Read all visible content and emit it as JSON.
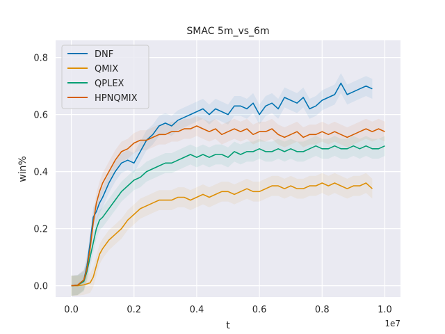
{
  "chart_data": {
    "type": "line",
    "title": "SMAC 5m_vs_6m",
    "xlabel": "t",
    "ylabel": "win%",
    "x_offset_label": "1e7",
    "xlim": [
      -0.05,
      1.05
    ],
    "ylim": [
      -0.04,
      0.86
    ],
    "x_ticks": [
      0.0,
      0.2,
      0.4,
      0.6,
      0.8,
      1.0
    ],
    "x_tick_labels": [
      "0.0",
      "0.2",
      "0.4",
      "0.6",
      "0.8",
      "1.0"
    ],
    "y_ticks": [
      0.0,
      0.2,
      0.4,
      0.6,
      0.8
    ],
    "y_tick_labels": [
      "0.0",
      "0.2",
      "0.4",
      "0.6",
      "0.8"
    ],
    "grid": true,
    "legend_position": "upper-left",
    "background": "#eaeaf2",
    "series": [
      {
        "name": "DNF",
        "color": "#0173b2",
        "x": [
          0.0,
          0.02,
          0.04,
          0.05,
          0.06,
          0.07,
          0.08,
          0.09,
          0.1,
          0.12,
          0.14,
          0.16,
          0.18,
          0.2,
          0.22,
          0.24,
          0.26,
          0.28,
          0.3,
          0.32,
          0.34,
          0.36,
          0.38,
          0.4,
          0.42,
          0.44,
          0.46,
          0.48,
          0.5,
          0.52,
          0.54,
          0.56,
          0.58,
          0.6,
          0.62,
          0.64,
          0.66,
          0.68,
          0.7,
          0.72,
          0.74,
          0.76,
          0.78,
          0.8,
          0.82,
          0.84,
          0.86,
          0.88,
          0.9,
          0.92,
          0.94,
          0.96
        ],
        "y": [
          0.0,
          0.002,
          0.02,
          0.07,
          0.15,
          0.24,
          0.26,
          0.29,
          0.31,
          0.36,
          0.4,
          0.43,
          0.44,
          0.43,
          0.47,
          0.51,
          0.53,
          0.56,
          0.57,
          0.56,
          0.58,
          0.59,
          0.6,
          0.61,
          0.62,
          0.6,
          0.62,
          0.61,
          0.6,
          0.63,
          0.63,
          0.62,
          0.64,
          0.6,
          0.63,
          0.64,
          0.62,
          0.66,
          0.65,
          0.64,
          0.66,
          0.62,
          0.63,
          0.65,
          0.66,
          0.67,
          0.71,
          0.67,
          0.68,
          0.69,
          0.7,
          0.69
        ]
      },
      {
        "name": "QMIX",
        "color": "#de8f05",
        "x": [
          0.0,
          0.02,
          0.04,
          0.06,
          0.07,
          0.08,
          0.09,
          0.1,
          0.12,
          0.14,
          0.16,
          0.18,
          0.2,
          0.22,
          0.24,
          0.26,
          0.28,
          0.3,
          0.32,
          0.34,
          0.36,
          0.38,
          0.4,
          0.42,
          0.44,
          0.46,
          0.48,
          0.5,
          0.52,
          0.54,
          0.56,
          0.58,
          0.6,
          0.62,
          0.64,
          0.66,
          0.68,
          0.7,
          0.72,
          0.74,
          0.76,
          0.78,
          0.8,
          0.82,
          0.84,
          0.86,
          0.88,
          0.9,
          0.92,
          0.94,
          0.96
        ],
        "y": [
          0.0,
          0.0,
          0.003,
          0.01,
          0.03,
          0.07,
          0.11,
          0.13,
          0.16,
          0.18,
          0.2,
          0.23,
          0.25,
          0.27,
          0.28,
          0.29,
          0.3,
          0.3,
          0.3,
          0.31,
          0.31,
          0.3,
          0.31,
          0.32,
          0.31,
          0.32,
          0.33,
          0.33,
          0.32,
          0.33,
          0.34,
          0.33,
          0.33,
          0.34,
          0.35,
          0.35,
          0.34,
          0.35,
          0.34,
          0.34,
          0.35,
          0.35,
          0.36,
          0.35,
          0.36,
          0.35,
          0.34,
          0.35,
          0.35,
          0.36,
          0.34
        ]
      },
      {
        "name": "QPLEX",
        "color": "#029e73",
        "x": [
          0.0,
          0.02,
          0.04,
          0.05,
          0.06,
          0.07,
          0.08,
          0.09,
          0.1,
          0.12,
          0.14,
          0.16,
          0.18,
          0.2,
          0.22,
          0.24,
          0.26,
          0.28,
          0.3,
          0.32,
          0.34,
          0.36,
          0.38,
          0.4,
          0.42,
          0.44,
          0.46,
          0.48,
          0.5,
          0.52,
          0.54,
          0.56,
          0.58,
          0.6,
          0.62,
          0.64,
          0.66,
          0.68,
          0.7,
          0.72,
          0.74,
          0.76,
          0.78,
          0.8,
          0.82,
          0.84,
          0.86,
          0.88,
          0.9,
          0.92,
          0.94,
          0.96,
          0.98,
          1.0
        ],
        "y": [
          0.0,
          0.002,
          0.015,
          0.05,
          0.1,
          0.15,
          0.2,
          0.23,
          0.24,
          0.27,
          0.3,
          0.33,
          0.35,
          0.37,
          0.38,
          0.4,
          0.41,
          0.42,
          0.43,
          0.43,
          0.44,
          0.45,
          0.46,
          0.45,
          0.46,
          0.45,
          0.46,
          0.46,
          0.45,
          0.47,
          0.46,
          0.47,
          0.47,
          0.48,
          0.47,
          0.47,
          0.48,
          0.47,
          0.48,
          0.47,
          0.47,
          0.48,
          0.49,
          0.48,
          0.48,
          0.49,
          0.48,
          0.48,
          0.49,
          0.48,
          0.49,
          0.48,
          0.48,
          0.49
        ]
      },
      {
        "name": "HPNQMIX",
        "color": "#d55e00",
        "x": [
          0.0,
          0.02,
          0.04,
          0.05,
          0.06,
          0.07,
          0.08,
          0.09,
          0.1,
          0.12,
          0.14,
          0.16,
          0.18,
          0.2,
          0.22,
          0.24,
          0.26,
          0.28,
          0.3,
          0.32,
          0.34,
          0.36,
          0.38,
          0.4,
          0.42,
          0.44,
          0.46,
          0.48,
          0.5,
          0.52,
          0.54,
          0.56,
          0.58,
          0.6,
          0.62,
          0.64,
          0.66,
          0.68,
          0.7,
          0.72,
          0.74,
          0.76,
          0.78,
          0.8,
          0.82,
          0.84,
          0.86,
          0.88,
          0.9,
          0.92,
          0.94,
          0.96,
          0.98,
          1.0
        ],
        "y": [
          0.0,
          0.002,
          0.02,
          0.06,
          0.13,
          0.22,
          0.29,
          0.33,
          0.36,
          0.4,
          0.44,
          0.47,
          0.48,
          0.5,
          0.51,
          0.51,
          0.52,
          0.53,
          0.53,
          0.54,
          0.54,
          0.55,
          0.55,
          0.56,
          0.55,
          0.54,
          0.55,
          0.53,
          0.54,
          0.55,
          0.54,
          0.55,
          0.53,
          0.54,
          0.54,
          0.55,
          0.53,
          0.52,
          0.53,
          0.54,
          0.52,
          0.53,
          0.53,
          0.54,
          0.53,
          0.54,
          0.53,
          0.52,
          0.53,
          0.54,
          0.55,
          0.54,
          0.55,
          0.54
        ]
      }
    ]
  }
}
